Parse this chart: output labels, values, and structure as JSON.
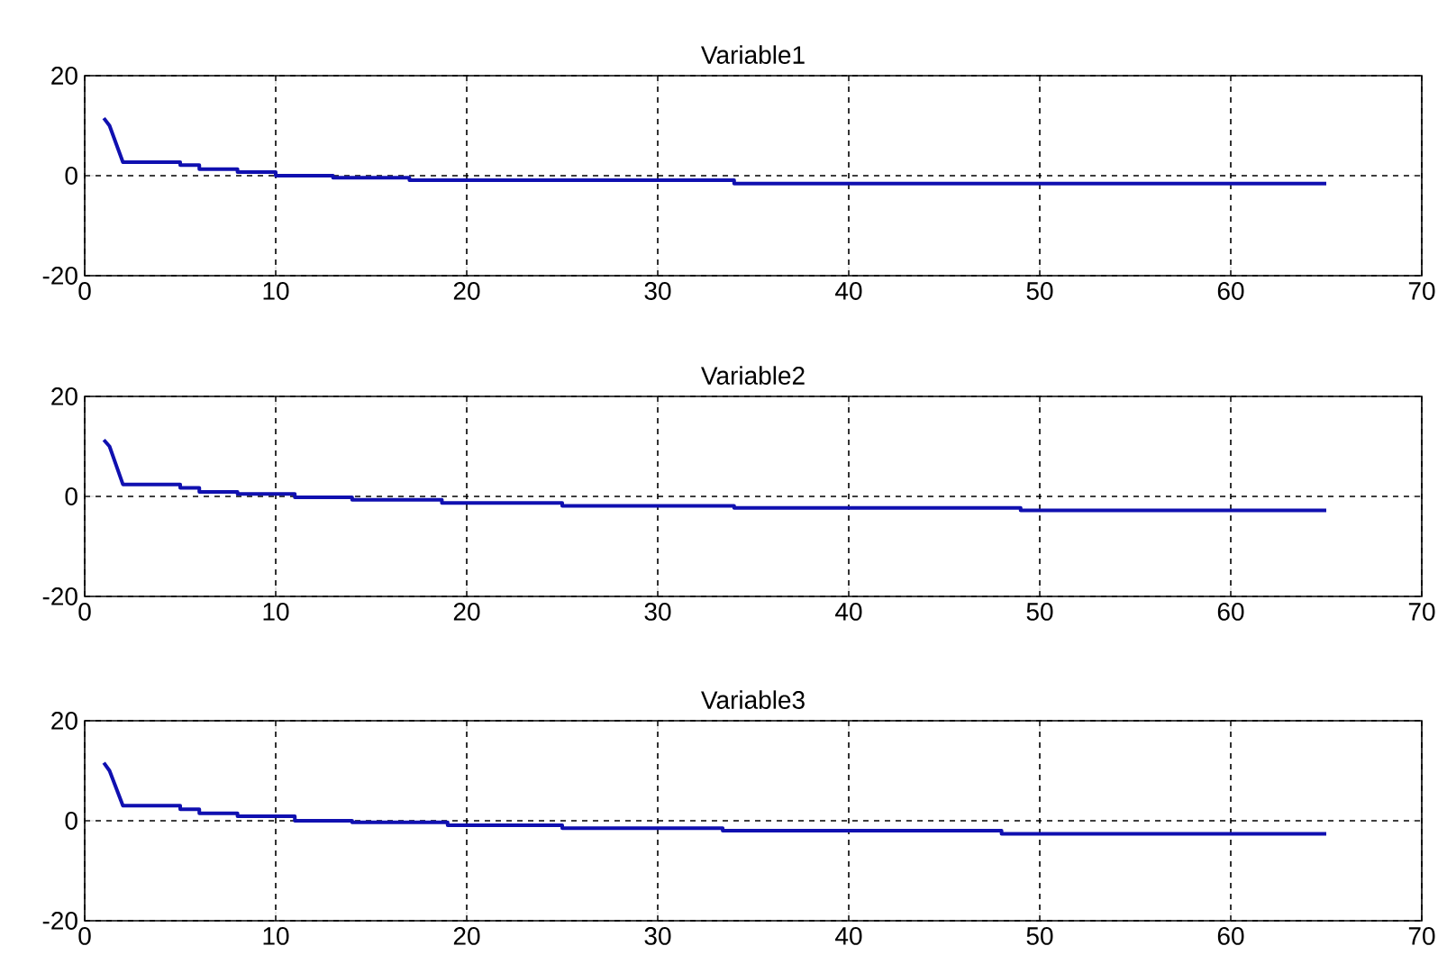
{
  "chart_data": [
    {
      "type": "line",
      "title": "Variable1",
      "xlim": [
        0,
        70
      ],
      "ylim": [
        -20,
        20
      ],
      "xticks": [
        0,
        10,
        20,
        30,
        40,
        50,
        60,
        70
      ],
      "yticks": [
        -20,
        0,
        20
      ],
      "grid": true,
      "series": [
        {
          "color": "#1010b0",
          "x": [
            1,
            1.3,
            2,
            5,
            5,
            6,
            6,
            8,
            8,
            10,
            10,
            13,
            13,
            17,
            17,
            34,
            34,
            65
          ],
          "values": [
            11.5,
            10,
            2.7,
            2.7,
            2.1,
            2.1,
            1.3,
            1.3,
            0.7,
            0.7,
            0,
            0,
            -0.4,
            -0.4,
            -0.9,
            -0.9,
            -1.6,
            -1.6
          ]
        }
      ]
    },
    {
      "type": "line",
      "title": "Variable2",
      "xlim": [
        0,
        70
      ],
      "ylim": [
        -20,
        20
      ],
      "xticks": [
        0,
        10,
        20,
        30,
        40,
        50,
        60,
        70
      ],
      "yticks": [
        -20,
        0,
        20
      ],
      "grid": true,
      "series": [
        {
          "color": "#1010b0",
          "x": [
            1,
            1.3,
            2,
            5,
            5,
            6,
            6,
            8,
            8,
            11,
            11,
            14,
            14,
            18.7,
            18.7,
            25,
            25,
            34,
            34,
            49,
            49,
            65
          ],
          "values": [
            11.3,
            10,
            2.4,
            2.4,
            1.7,
            1.7,
            0.9,
            0.9,
            0.5,
            0.5,
            -0.2,
            -0.2,
            -0.7,
            -0.7,
            -1.3,
            -1.3,
            -1.9,
            -1.9,
            -2.3,
            -2.3,
            -2.8,
            -2.8
          ]
        }
      ]
    },
    {
      "type": "line",
      "title": "Variable3",
      "xlim": [
        0,
        70
      ],
      "ylim": [
        -20,
        20
      ],
      "xticks": [
        0,
        10,
        20,
        30,
        40,
        50,
        60,
        70
      ],
      "yticks": [
        -20,
        0,
        20
      ],
      "grid": true,
      "series": [
        {
          "color": "#1010b0",
          "x": [
            1,
            1.3,
            2,
            5,
            5,
            6,
            6,
            8,
            8,
            11,
            11,
            14,
            14,
            19,
            19,
            25,
            25,
            33.4,
            33.4,
            48,
            48,
            65
          ],
          "values": [
            11.6,
            10,
            3,
            3,
            2.3,
            2.3,
            1.5,
            1.5,
            0.9,
            0.9,
            0,
            0,
            -0.3,
            -0.3,
            -0.9,
            -0.9,
            -1.5,
            -1.5,
            -2,
            -2,
            -2.6,
            -2.6
          ]
        }
      ]
    }
  ]
}
